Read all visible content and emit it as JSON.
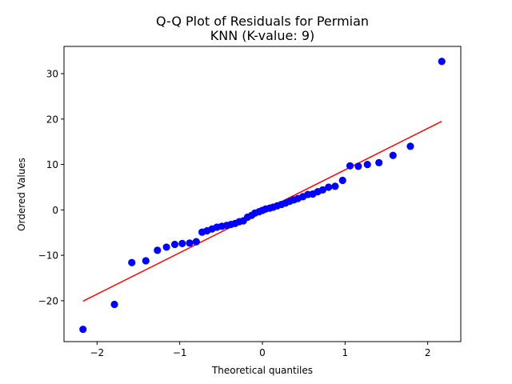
{
  "chart_data": {
    "type": "scatter",
    "title": "Q-Q Plot of Residuals for Permian",
    "subtitle": "KNN (K-value: 9)",
    "xlabel": "Theoretical quantiles",
    "ylabel": "Ordered Values",
    "xlim": [
      -2.4,
      2.4
    ],
    "ylim": [
      -29,
      36
    ],
    "xticks": [
      -2,
      -1,
      0,
      1,
      2
    ],
    "yticks": [
      -20,
      -10,
      0,
      10,
      20,
      30
    ],
    "xtick_labels": [
      "−2",
      "−1",
      "0",
      "1",
      "2"
    ],
    "ytick_labels": [
      "−20",
      "−10",
      "0",
      "10",
      "20",
      "30"
    ],
    "grid": false,
    "series": [
      {
        "kind": "points",
        "color": "#0000ff",
        "x": [
          -2.17,
          -1.79,
          -1.58,
          -1.41,
          -1.27,
          -1.16,
          -1.06,
          -0.97,
          -0.88,
          -0.8,
          -0.73,
          -0.67,
          -0.61,
          -0.55,
          -0.49,
          -0.43,
          -0.38,
          -0.33,
          -0.28,
          -0.23,
          -0.18,
          -0.13,
          -0.09,
          -0.04,
          0.0,
          0.04,
          0.09,
          0.13,
          0.18,
          0.23,
          0.28,
          0.33,
          0.38,
          0.43,
          0.49,
          0.55,
          0.61,
          0.67,
          0.73,
          0.8,
          0.88,
          0.97,
          1.06,
          1.16,
          1.27,
          1.41,
          1.58,
          1.79,
          2.17
        ],
        "y": [
          -26.3,
          -20.8,
          -11.6,
          -11.2,
          -8.9,
          -8.2,
          -7.6,
          -7.4,
          -7.3,
          -7.0,
          -4.9,
          -4.6,
          -4.2,
          -3.8,
          -3.6,
          -3.4,
          -3.2,
          -3.0,
          -2.6,
          -2.4,
          -1.6,
          -1.2,
          -0.7,
          -0.4,
          -0.1,
          0.2,
          0.4,
          0.6,
          0.9,
          1.2,
          1.5,
          1.9,
          2.2,
          2.5,
          2.9,
          3.4,
          3.5,
          4.0,
          4.4,
          5.0,
          5.2,
          6.5,
          9.7,
          9.6,
          10.0,
          10.4,
          12.0,
          14.0,
          32.7
        ]
      },
      {
        "kind": "line",
        "color": "#ff0000",
        "x": [
          -2.17,
          2.17
        ],
        "y": [
          -20.1,
          19.5
        ]
      }
    ]
  }
}
